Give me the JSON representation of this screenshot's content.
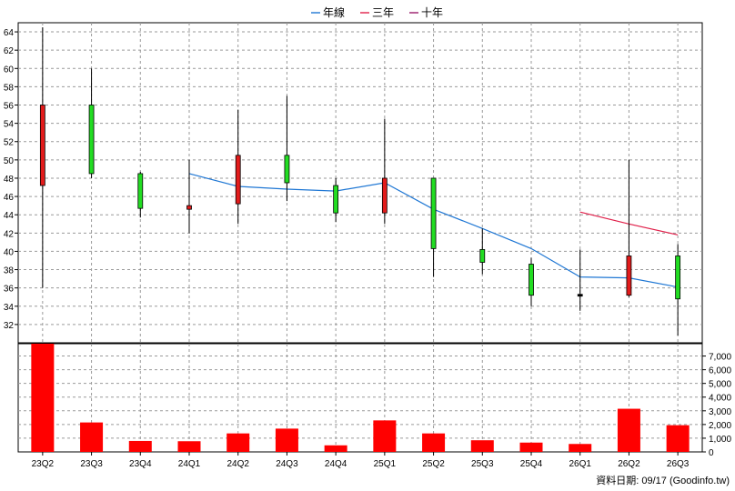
{
  "chart_data": {
    "type": "candlestick",
    "legend": {
      "position": "top-center",
      "items": [
        {
          "label": "年線",
          "color": "#1f77d4"
        },
        {
          "label": "三年",
          "color": "#e0204a"
        },
        {
          "label": "十年",
          "color": "#9a1a6a"
        }
      ]
    },
    "categories": [
      "23Q2",
      "23Q3",
      "23Q4",
      "24Q1",
      "24Q2",
      "24Q3",
      "24Q4",
      "25Q1",
      "25Q2",
      "25Q3",
      "25Q4",
      "26Q1",
      "26Q2",
      "26Q3"
    ],
    "price_axis": {
      "ylim": [
        30,
        65
      ],
      "ticks": [
        32,
        34,
        36,
        38,
        40,
        42,
        44,
        46,
        48,
        50,
        52,
        54,
        56,
        58,
        60,
        62,
        64
      ]
    },
    "volume_axis": {
      "ylim": [
        0,
        7900
      ],
      "ticks": [
        0,
        1000,
        2000,
        3000,
        4000,
        5000,
        6000,
        7000
      ],
      "tick_labels": [
        "0",
        "1,000",
        "2,000",
        "3,000",
        "4,000",
        "5,000",
        "6,000",
        "7,000"
      ]
    },
    "candles": [
      {
        "open": 47.2,
        "close": 56.0,
        "high": 64.5,
        "low": 36.0,
        "color": "red"
      },
      {
        "open": 56.0,
        "close": 48.5,
        "high": 60.0,
        "low": 48.0,
        "color": "green"
      },
      {
        "open": 48.5,
        "close": 44.7,
        "high": 48.7,
        "low": 43.7,
        "color": "green"
      },
      {
        "open": 44.6,
        "close": 45.0,
        "high": 50.0,
        "low": 42.0,
        "color": "red"
      },
      {
        "open": 45.2,
        "close": 50.5,
        "high": 55.5,
        "low": 43.0,
        "color": "red"
      },
      {
        "open": 50.5,
        "close": 47.5,
        "high": 57.0,
        "low": 45.5,
        "color": "green"
      },
      {
        "open": 47.2,
        "close": 44.2,
        "high": 48.0,
        "low": 43.2,
        "color": "green"
      },
      {
        "open": 44.2,
        "close": 48.0,
        "high": 54.5,
        "low": 43.0,
        "color": "red"
      },
      {
        "open": 48.0,
        "close": 40.3,
        "high": 48.0,
        "low": 37.2,
        "color": "green"
      },
      {
        "open": 40.2,
        "close": 38.8,
        "high": 42.5,
        "low": 37.5,
        "color": "green"
      },
      {
        "open": 38.6,
        "close": 35.2,
        "high": 39.3,
        "low": 34.0,
        "color": "green"
      },
      {
        "open": 35.3,
        "close": 35.1,
        "high": 40.2,
        "low": 33.5,
        "color": "flat"
      },
      {
        "open": 35.2,
        "close": 39.5,
        "high": 50.0,
        "low": 35.0,
        "color": "red"
      },
      {
        "open": 39.5,
        "close": 34.8,
        "high": 40.8,
        "low": 30.8,
        "color": "green"
      }
    ],
    "series": [
      {
        "name": "年線",
        "color": "#1f77d4",
        "values": [
          null,
          null,
          null,
          48.5,
          47.1,
          46.8,
          46.6,
          47.5,
          44.6,
          42.5,
          40.3,
          37.2,
          37.1,
          36.1
        ]
      },
      {
        "name": "三年",
        "color": "#e0204a",
        "values": [
          null,
          null,
          null,
          null,
          null,
          null,
          null,
          null,
          null,
          null,
          null,
          44.3,
          43.0,
          41.8
        ]
      },
      {
        "name": "十年",
        "color": "#9a1a6a",
        "values": [
          null,
          null,
          null,
          null,
          null,
          null,
          null,
          null,
          null,
          null,
          null,
          null,
          null,
          null
        ]
      }
    ],
    "volume": [
      7900,
      2150,
      800,
      780,
      1350,
      1700,
      480,
      2300,
      1350,
      850,
      680,
      580,
      3150,
      1950
    ],
    "grid": true
  },
  "footer": {
    "text": "資料日期: 09/17  (Goodinfo.tw)"
  }
}
